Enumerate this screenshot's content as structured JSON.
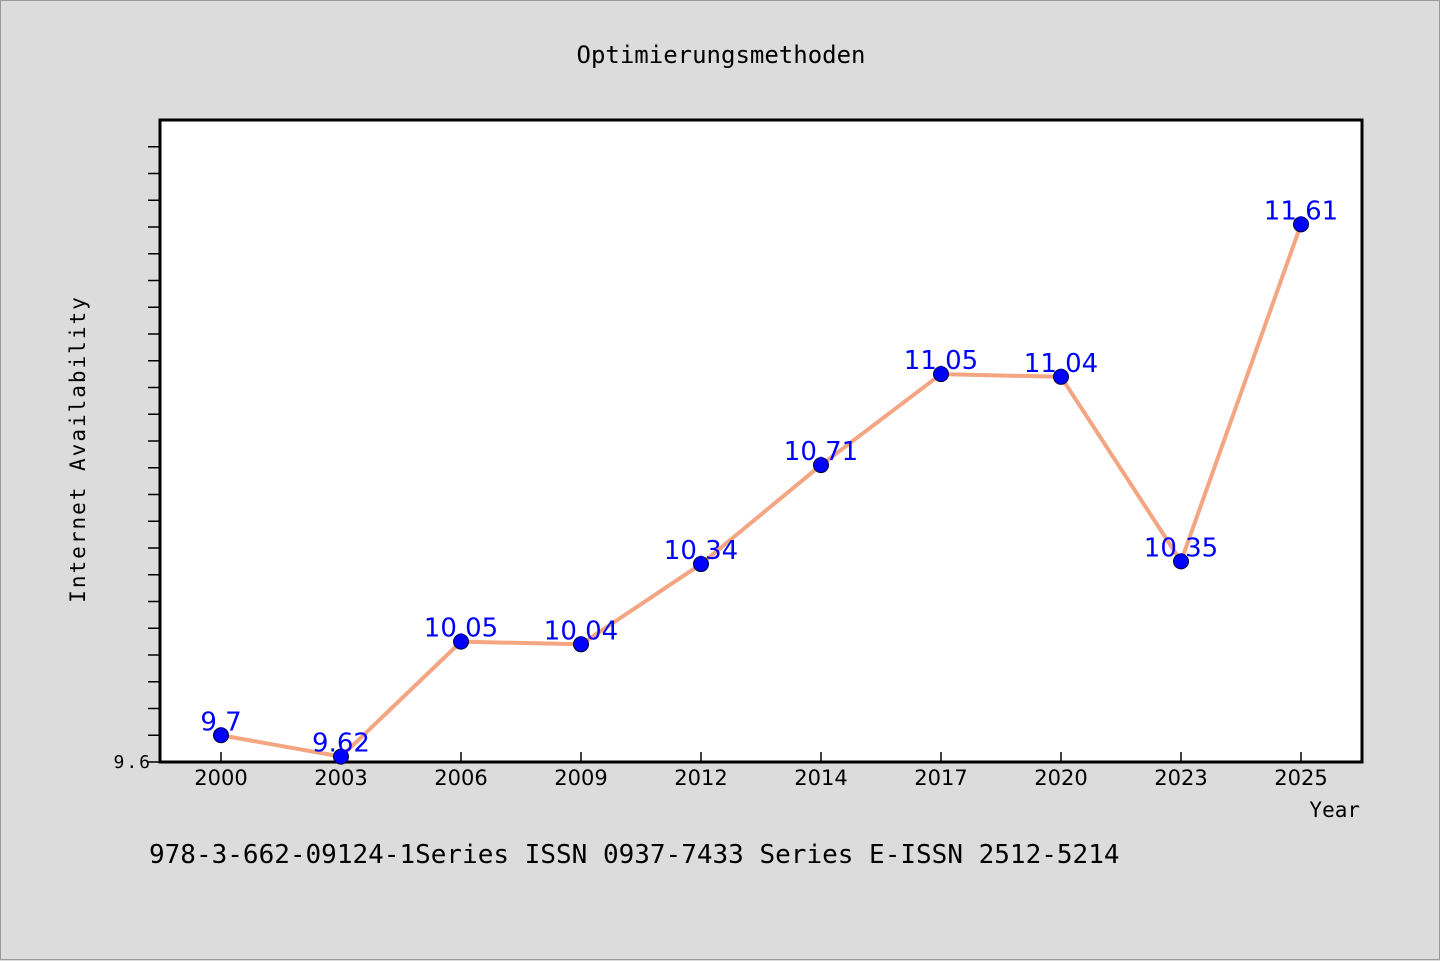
{
  "chart_data": {
    "type": "line",
    "title": "Optimierungsmethoden",
    "xlabel": "Year",
    "ylabel": "Internet Availability",
    "categories": [
      "2000",
      "2003",
      "2006",
      "2009",
      "2012",
      "2014",
      "2017",
      "2020",
      "2023",
      "2025"
    ],
    "series": [
      {
        "values": [
          9.7,
          9.62,
          10.05,
          10.04,
          10.34,
          10.71,
          11.05,
          11.04,
          10.35,
          11.61
        ],
        "labels": [
          "9.7",
          "9.62",
          "10.05",
          "10.04",
          "10.34",
          "10.71",
          "11.05",
          "11.04",
          "10.35",
          "11.61"
        ],
        "line_color": "#f4a582",
        "marker_color": "#0000ff",
        "label_color": "#0000ff"
      }
    ],
    "ylim": [
      9.6,
      12.0
    ],
    "yticks_labeled": [
      "9.6"
    ],
    "grid": false,
    "legend": "none"
  },
  "footer_text": "978-3-662-09124-1Series ISSN 0937-7433 Series E-ISSN 2512-5214",
  "colors": {
    "background": "#dcdcdc",
    "plot_background": "#ffffff",
    "axis": "#000000"
  }
}
